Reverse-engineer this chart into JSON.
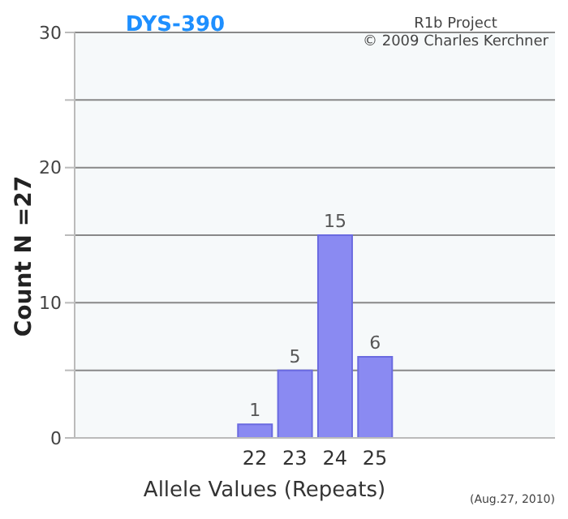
{
  "chart_data": {
    "type": "bar",
    "title": "DYS-390",
    "xlabel": "Allele Values (Repeats)",
    "ylabel": "Count N =27",
    "annotations": [
      "R1b Project",
      "© 2009 Charles Kerchner",
      "(Aug.27, 2010)"
    ],
    "categories": [
      null,
      null,
      null,
      null,
      "22",
      "23",
      "24",
      "25",
      null,
      null,
      null,
      null
    ],
    "values": [
      null,
      null,
      null,
      null,
      1,
      5,
      15,
      6,
      null,
      null,
      null,
      null
    ],
    "color": "#8a8af2",
    "ylim": [
      0,
      30
    ],
    "yticks": [
      0,
      {
        "value": 5,
        "label": null
      },
      10,
      {
        "value": 15,
        "label": null
      },
      20,
      {
        "value": 25,
        "label": null
      },
      30
    ],
    "grid": "y",
    "data_labels": true
  }
}
